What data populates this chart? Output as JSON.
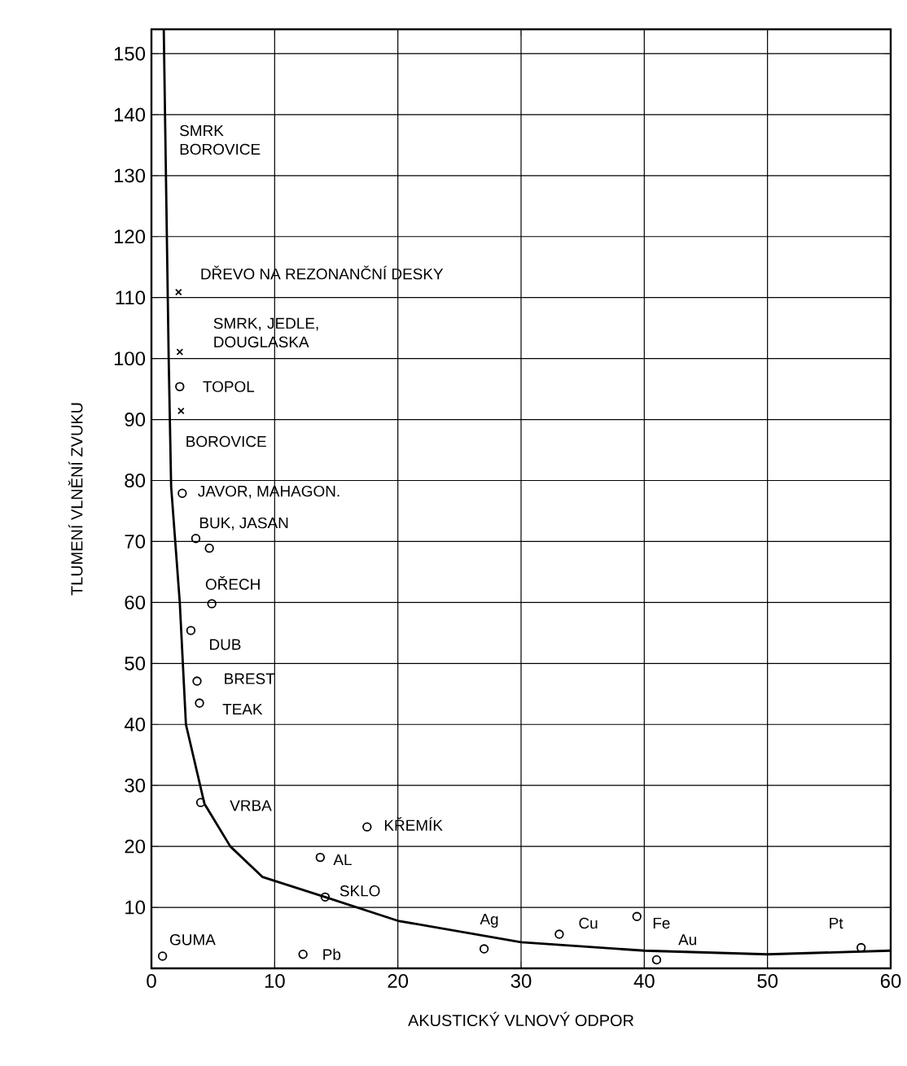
{
  "chart_data": {
    "type": "scatter",
    "xlabel": "AKUSTICKÝ VLNOVÝ ODPOR",
    "ylabel": "TLUMENÍ VLNĚNÍ ZVUKU",
    "xlim": [
      0,
      60
    ],
    "xticks": [
      0,
      10,
      20,
      30,
      40,
      50,
      60
    ],
    "ylim": [
      0,
      154
    ],
    "yticks": [
      10,
      20,
      30,
      40,
      50,
      60,
      70,
      80,
      90,
      100,
      110,
      120,
      130,
      140,
      150
    ],
    "grid": true,
    "series": [
      {
        "marker": "circle",
        "color": "#000000",
        "x": [
          2.3,
          2.5,
          3.6,
          4.7,
          4.9,
          3.2,
          3.7,
          3.9,
          4.0,
          17.5,
          13.7,
          14.1,
          0.9,
          12.3,
          27.0,
          33.1,
          39.4,
          41.0,
          57.6
        ],
        "values": [
          95.4,
          77.9,
          70.5,
          68.9,
          59.8,
          55.4,
          47.1,
          43.5,
          27.2,
          23.2,
          18.2,
          11.7,
          2.0,
          2.3,
          3.2,
          5.6,
          8.5,
          1.4,
          3.4
        ]
      },
      {
        "marker": "cross",
        "color": "#000000",
        "x": [
          2.2,
          2.3,
          2.4
        ],
        "values": [
          110.9,
          101.1,
          91.4
        ]
      },
      {
        "type": "line",
        "marker": "none",
        "color": "#000000",
        "x": [
          1.0,
          1.4,
          1.6,
          2.3,
          2.8,
          4.3,
          6.4,
          9.0,
          14.1,
          20.0,
          30.0,
          40.0,
          50.0,
          60.0
        ],
        "values": [
          154,
          100,
          79,
          60,
          40,
          27,
          20,
          15,
          11.7,
          7.8,
          4.3,
          2.9,
          2.3,
          2.9
        ]
      }
    ],
    "annotations": [
      "SMRK BOROVICE",
      {
        "text": "DŘEVO NA REZONANČNÍ DESKY",
        "x": 2.2,
        "y": 110.9
      },
      {
        "text": "SMRK, JEDLE, DOUGLASKA",
        "x": 2.3,
        "y": 101.1
      },
      {
        "text": "TOPOL",
        "x": 2.3,
        "y": 95.4
      },
      {
        "text": "BOROVICE",
        "x": 2.4,
        "y": 91.4
      },
      {
        "text": "JAVOR,  MAHAGON.",
        "x": 2.5,
        "y": 77.9
      },
      {
        "text": "BUK, JASAN",
        "x": 3.6,
        "y": 70.5
      },
      {
        "text": "OŘECH",
        "x": 4.9,
        "y": 59.8
      },
      {
        "text": "DUB",
        "x": 3.2,
        "y": 55.4
      },
      {
        "text": "BREST",
        "x": 3.7,
        "y": 47.1
      },
      {
        "text": "TEAK",
        "x": 3.9,
        "y": 43.5
      },
      {
        "text": "VRBA",
        "x": 4.0,
        "y": 27.2
      },
      {
        "text": "KŘEMÍK",
        "x": 17.5,
        "y": 23.2
      },
      {
        "text": "AL",
        "x": 13.7,
        "y": 18.2
      },
      {
        "text": "SKLO",
        "x": 14.1,
        "y": 11.7
      },
      {
        "text": "GUMA",
        "x": 0.9,
        "y": 2.0
      },
      {
        "text": "Pb",
        "x": 12.3,
        "y": 2.3
      },
      {
        "text": "Ag",
        "x": 27.0,
        "y": 3.2
      },
      {
        "text": "Cu",
        "x": 33.1,
        "y": 5.6
      },
      {
        "text": "Fe",
        "x": 39.4,
        "y": 8.5
      },
      {
        "text": "Au",
        "x": 41.0,
        "y": 1.4
      },
      {
        "text": "Pt",
        "x": 57.6,
        "y": 3.4
      }
    ]
  }
}
